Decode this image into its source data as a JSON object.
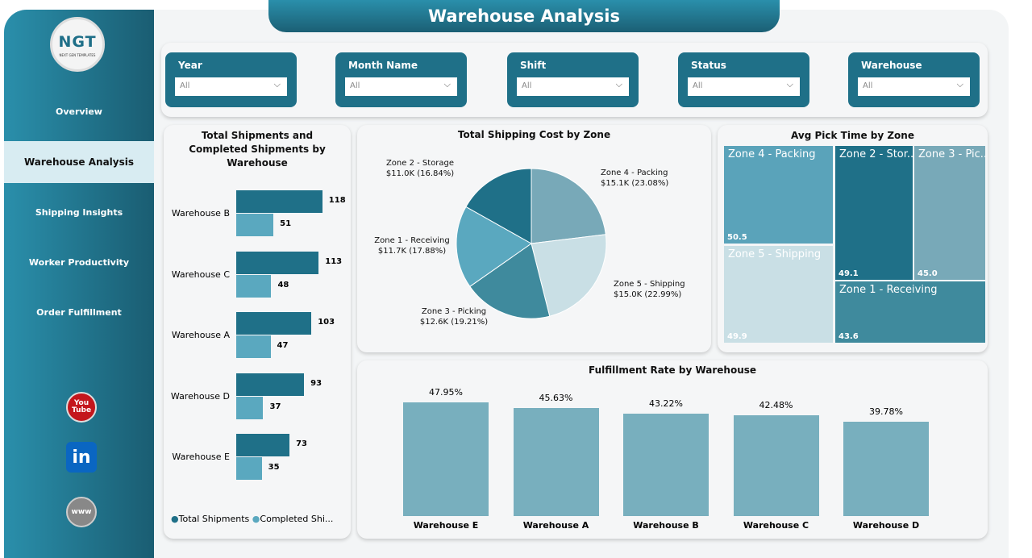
{
  "title": "Warehouse Analysis",
  "logo": {
    "text": "NGT",
    "subtitle": "NEXT GEN TEMPLATES"
  },
  "sidebar": {
    "items": [
      {
        "label": "Overview"
      },
      {
        "label": "Warehouse Analysis",
        "active": true
      },
      {
        "label": "Shipping Insights"
      },
      {
        "label": "Worker Productivity"
      },
      {
        "label": "Order Fulfillment"
      }
    ],
    "social": [
      {
        "icon": "youtube-icon",
        "label": "You Tube"
      },
      {
        "icon": "linkedin-icon",
        "label": "in"
      },
      {
        "icon": "web-icon",
        "label": "www"
      }
    ]
  },
  "filters": [
    {
      "label": "Year",
      "value": "All"
    },
    {
      "label": "Month Name",
      "value": "All"
    },
    {
      "label": "Shift",
      "value": "All"
    },
    {
      "label": "Status",
      "value": "All"
    },
    {
      "label": "Warehouse",
      "value": "All"
    }
  ],
  "colors": {
    "dark": "#1f7088",
    "mid": "#5aa8bf",
    "bar": "#78afbe"
  },
  "chart_data": [
    {
      "type": "bar",
      "orientation": "horizontal",
      "title": "Total Shipments and Completed Shipments by Warehouse",
      "categories": [
        "Warehouse B",
        "Warehouse C",
        "Warehouse A",
        "Warehouse D",
        "Warehouse E"
      ],
      "series": [
        {
          "name": "Total Shipments",
          "values": [
            118,
            113,
            103,
            93,
            73
          ]
        },
        {
          "name": "Completed Shi...",
          "values": [
            51,
            48,
            47,
            37,
            35
          ]
        }
      ],
      "legend": "bottom"
    },
    {
      "type": "pie",
      "title": "Total Shipping Cost by Zone",
      "slices": [
        {
          "label": "Zone 4 - Packing",
          "value_label": "$15.1K (23.08%)",
          "percent": 23.08,
          "color": "#78a9b8"
        },
        {
          "label": "Zone 5 - Shipping",
          "value_label": "$15.0K (22.99%)",
          "percent": 22.99,
          "color": "#c9dfe5"
        },
        {
          "label": "Zone 3 - Picking",
          "value_label": "$12.6K (19.21%)",
          "percent": 19.21,
          "color": "#3f8a9d"
        },
        {
          "label": "Zone 1 - Receiving",
          "value_label": "$11.7K (17.88%)",
          "percent": 17.88,
          "color": "#5aa8bf"
        },
        {
          "label": "Zone 2 - Storage",
          "value_label": "$11.0K (16.84%)",
          "percent": 16.84,
          "color": "#1f7088"
        }
      ]
    },
    {
      "type": "treemap",
      "title": "Avg Pick Time by Zone",
      "items": [
        {
          "label": "Zone 4 - Packing",
          "value": "50.5",
          "color": "#5aa3ba"
        },
        {
          "label": "Zone 5 - Shipping",
          "value": "49.9",
          "color": "#c9dfe5"
        },
        {
          "label": "Zone 2 - Stor...",
          "value": "49.1",
          "color": "#1f7088"
        },
        {
          "label": "Zone 3 - Pic...",
          "value": "45.0",
          "color": "#78a9b8"
        },
        {
          "label": "Zone 1 - Receiving",
          "value": "43.6",
          "color": "#3f8a9d"
        }
      ]
    },
    {
      "type": "bar",
      "title": "Fulfillment Rate by Warehouse",
      "categories": [
        "Warehouse E",
        "Warehouse A",
        "Warehouse B",
        "Warehouse C",
        "Warehouse D"
      ],
      "values": [
        47.95,
        45.63,
        43.22,
        42.48,
        39.78
      ],
      "labels": [
        "47.95%",
        "45.63%",
        "43.22%",
        "42.48%",
        "39.78%"
      ]
    }
  ]
}
